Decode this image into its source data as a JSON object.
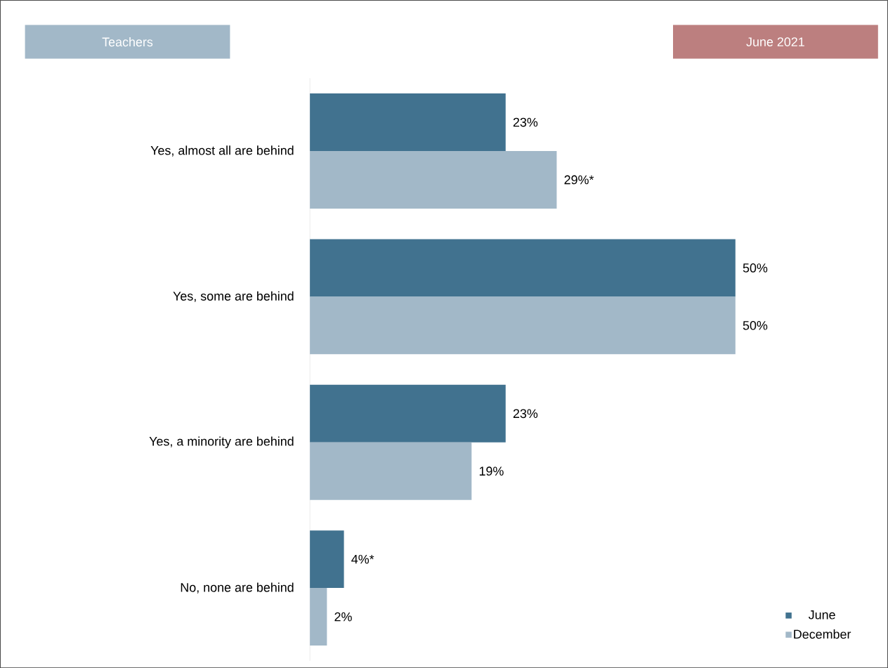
{
  "chart_data": {
    "type": "bar",
    "orientation": "horizontal",
    "title": "Teachers",
    "subtitle": "June 2021",
    "categories": [
      "Yes, almost all are behind",
      "Yes, some are behind",
      "Yes, a minority are behind",
      "No, none are behind"
    ],
    "series": [
      {
        "name": "June",
        "color": "#41728f",
        "values": [
          23,
          50,
          23,
          4
        ],
        "value_labels": [
          "23%",
          "50%",
          "23%",
          "4%*"
        ]
      },
      {
        "name": "December",
        "color": "#a2b8c8",
        "values": [
          29,
          50,
          19,
          2
        ],
        "value_labels": [
          "29%*",
          "50%",
          "19%",
          "2%"
        ]
      }
    ],
    "legend": "bottom right",
    "grid": false
  }
}
